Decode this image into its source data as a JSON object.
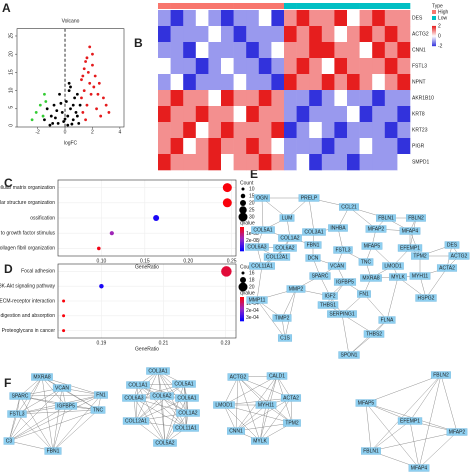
{
  "panel_labels": [
    "A",
    "B",
    "C",
    "D",
    "E",
    "F"
  ],
  "chart_data": [
    {
      "type": "scatter",
      "title": "Volcano",
      "xlabel": "logFC",
      "xlim": [
        -3.5,
        4.3
      ],
      "ylim": [
        0,
        27
      ],
      "xticks": [
        -2,
        0,
        2,
        4
      ],
      "yticks": [
        0,
        5,
        10,
        15,
        20,
        25
      ],
      "vlines": [
        0
      ],
      "series": [
        {
          "color": "#000000",
          "x": [
            -0.5,
            0.2,
            0.6,
            -1.0,
            -0.2,
            0.4,
            0.9,
            1.1,
            -1.3,
            -0.8,
            0.1,
            0.7,
            -0.4,
            0.3,
            -1.5,
            -0.1,
            0.5,
            -0.7,
            0.8,
            1.0,
            -0.3,
            0.2,
            -0.9,
            0.0,
            0.6,
            -0.6,
            0.4,
            -1.1,
            0.9,
            0.3
          ],
          "values": [
            1,
            0.5,
            2,
            3,
            4,
            5,
            3,
            6,
            5,
            6,
            7,
            8,
            9,
            10,
            2,
            1.5,
            0.8,
            2.5,
            4,
            1,
            6.5,
            3,
            1,
            2.2,
            6,
            4.5,
            11,
            0.5,
            9,
            12
          ]
        },
        {
          "color": "#e41a1c",
          "x": [
            1.2,
            1.4,
            1.5,
            1.8,
            2.0,
            1.6,
            2.2,
            1.3,
            2.5,
            1.9,
            2.8,
            1.7,
            2.1,
            3.0,
            1.5,
            2.3,
            1.4,
            2.6,
            1.8,
            1.2,
            2.0,
            1.6,
            2.4,
            3.2,
            1.3
          ],
          "values": [
            13,
            10,
            18,
            22,
            17,
            6,
            14,
            4,
            12,
            9,
            8,
            15,
            11,
            6,
            2,
            5,
            16,
            3,
            12,
            8,
            20,
            19,
            9,
            4,
            14
          ]
        },
        {
          "color": "#33cc33",
          "x": [
            -1.5,
            -1.8,
            -2.1,
            -1.4,
            -1.6,
            -2.4
          ],
          "values": [
            9,
            6,
            4,
            7,
            3,
            2
          ]
        }
      ]
    },
    {
      "type": "heatmap",
      "legend_title": "Type",
      "rows": [
        "DES",
        "ACTG2",
        "CNN1",
        "FSTL3",
        "NPNT",
        "AKR1B10",
        "KRT8",
        "KRT23",
        "PIGR",
        "SMPD1"
      ],
      "groups": [
        {
          "name": "High",
          "color": "#f8766d"
        },
        {
          "name": "Low",
          "color": "#00bfc4"
        }
      ],
      "column_groups": [
        0,
        0,
        0,
        0,
        0,
        0,
        0,
        0,
        0,
        0,
        1,
        1,
        1,
        1,
        1,
        1,
        1,
        1,
        1,
        1
      ],
      "color_ticks": [
        2,
        0,
        -2
      ],
      "clim": [
        -2,
        2
      ],
      "values": [
        [
          -1,
          -2,
          -1,
          0,
          -1,
          -2,
          -1,
          -1,
          0,
          -2,
          1,
          2,
          1,
          1,
          2,
          0,
          1,
          2,
          1,
          1
        ],
        [
          -2,
          -1,
          -1,
          -1,
          0,
          -1,
          -2,
          -1,
          -1,
          -1,
          2,
          1,
          2,
          1,
          0,
          1,
          2,
          1,
          2,
          1
        ],
        [
          -1,
          -1,
          -2,
          0,
          -1,
          -1,
          -1,
          -2,
          -1,
          0,
          1,
          1,
          2,
          2,
          1,
          1,
          0,
          2,
          1,
          2
        ],
        [
          0,
          -1,
          -1,
          -2,
          -1,
          0,
          -1,
          -1,
          -2,
          -1,
          1,
          2,
          1,
          0,
          2,
          1,
          1,
          1,
          2,
          1
        ],
        [
          -1,
          0,
          -2,
          -1,
          -1,
          -1,
          0,
          -1,
          -1,
          -2,
          2,
          1,
          1,
          2,
          1,
          2,
          1,
          0,
          1,
          2
        ],
        [
          1,
          2,
          1,
          1,
          0,
          2,
          1,
          1,
          2,
          1,
          -1,
          -1,
          -2,
          -1,
          0,
          -1,
          -1,
          -2,
          -1,
          -1
        ],
        [
          2,
          1,
          1,
          2,
          1,
          1,
          0,
          2,
          1,
          1,
          -1,
          -2,
          -1,
          -1,
          -1,
          0,
          -2,
          -1,
          -1,
          -2
        ],
        [
          1,
          1,
          2,
          0,
          1,
          2,
          1,
          1,
          1,
          2,
          -2,
          -1,
          0,
          -1,
          -2,
          -1,
          -1,
          -1,
          -2,
          -1
        ],
        [
          1,
          2,
          0,
          1,
          2,
          1,
          1,
          2,
          1,
          0,
          -1,
          -1,
          -1,
          -2,
          -1,
          -1,
          0,
          -1,
          -1,
          -2
        ],
        [
          2,
          1,
          1,
          1,
          2,
          0,
          1,
          1,
          2,
          1,
          -1,
          0,
          -2,
          -1,
          -1,
          -2,
          -1,
          -1,
          -1,
          0
        ]
      ]
    },
    {
      "type": "dot",
      "xlabel": "GeneRatio",
      "categories": [
        "extracellular matrix organization",
        "extracellular structure organization",
        "ossification",
        "negative regulation of cellular response to growth factor stimulus",
        "collagen fibril organization"
      ],
      "values": [
        0.245,
        0.245,
        0.163,
        0.112,
        0.097
      ],
      "counts": [
        30,
        30,
        20,
        14,
        12
      ],
      "qvalues": [
        1e-09,
        1e-09,
        3.2e-08,
        1.6e-08,
        2e-09
      ],
      "xlim": [
        0.05,
        0.255
      ],
      "xticks": [
        {
          "value": 0.1,
          "label": "0.10"
        },
        0.15,
        {
          "value": 0.2,
          "label": "0.20"
        },
        0.25
      ],
      "size_title": "Count",
      "size_ticks": [
        10,
        15,
        20,
        25,
        30
      ],
      "color_title": "qvalue",
      "qlim": [
        0,
        3.5e-08
      ],
      "color_ticks": [
        {
          "value": 1e-08,
          "label": "1e-08"
        },
        {
          "value": 2e-08,
          "label": "2e-08"
        },
        {
          "value": 3e-08,
          "label": "3e-08"
        }
      ]
    },
    {
      "type": "dot",
      "xlabel": "GeneRatio",
      "categories": [
        "Focal adhesion",
        "PI3K-Akt signaling pathway",
        "ECM-receptor interaction",
        "Protein digestion and absorption",
        "Proteoglycans in cancer"
      ],
      "values": [
        0.2303,
        0.19,
        0.1778,
        0.1778,
        0.1778
      ],
      "counts": [
        21,
        17,
        16,
        16,
        16
      ],
      "qvalues": [
        5e-05,
        0.00032,
        1e-05,
        1e-05,
        1e-05
      ],
      "xlim": [
        0.176,
        0.2334
      ],
      "xticks": [
        0.19,
        0.21,
        0.23
      ],
      "size_title": "Count",
      "size_ticks": [
        16,
        18,
        20
      ],
      "color_title": "qvalue",
      "qlim": [
        0,
        0.00035
      ],
      "color_ticks": [
        {
          "value": 0.0001,
          "label": "1e-04"
        },
        {
          "value": 0.0002,
          "label": "2e-04"
        },
        {
          "value": 0.0003,
          "label": "3e-04"
        }
      ]
    }
  ],
  "network_e": {
    "nodes": [
      "OGN",
      "PRELP",
      "CCL21",
      "LUM",
      "FBLN1",
      "FBLN2",
      "COL5A1",
      "COL1A2",
      "COL3A1",
      "INHBA",
      "MFAP2",
      "MFAP4",
      "COL6A3",
      "COL6A2",
      "COL12A1",
      "FBN1",
      "FSTL3",
      "MFAP5",
      "EFEMP1",
      "DES",
      "COL11A1",
      "DCN",
      "VCAN",
      "TNC",
      "LMOD1",
      "TPM2",
      "ACTG2",
      "MYH11",
      "MYLK",
      "ACTA2",
      "MXRA8",
      "SPARC",
      "IGFBP5",
      "MMP2",
      "MMP11",
      "IGF2",
      "FN1",
      "HSPG2",
      "TIMP2",
      "THBS1",
      "SERPING1",
      "FLNA",
      "C1S",
      "THBS2",
      "SPON1"
    ]
  },
  "network_f": [
    {
      "nodes": [
        "MXRA8",
        "VCAN",
        "SPARC",
        "FN1",
        "IGFBP5",
        "FSTL3",
        "TNC",
        "C3",
        "FBN1"
      ]
    },
    {
      "nodes": [
        "COL3A1",
        "COL1A1",
        "COL5A1",
        "COL6A3",
        "COL6A2",
        "COL6A1",
        "COL12A1",
        "COL1A2",
        "COL11A1",
        "COL5A2"
      ]
    },
    {
      "nodes": [
        "ACTG2",
        "CALD1",
        "ACTA2",
        "LMOD1",
        "MYH11",
        "CNN1",
        "TPM2",
        "MYLK"
      ]
    },
    {
      "nodes": [
        "FBLN2",
        "MFAP5",
        "EFEMP1",
        "MFAP2",
        "FBLN1",
        "MFAP4"
      ]
    }
  ]
}
